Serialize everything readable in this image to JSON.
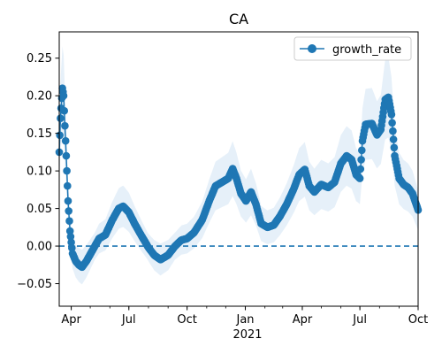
{
  "chart_data": {
    "type": "line",
    "title": "CA",
    "xlabel": "2021",
    "ylabel": "",
    "x_range": [
      "2020-03-13",
      "2021-10-01"
    ],
    "ylim": [
      -0.08,
      0.285
    ],
    "grid": false,
    "legend_position": "top-right",
    "colors": {
      "series": "#1f77b4",
      "band": "#e6f0f9",
      "reference_line": "#1f77b4"
    },
    "x_ticks": [
      {
        "date": "2020-04-01",
        "label": "Apr"
      },
      {
        "date": "2020-07-01",
        "label": "Jul"
      },
      {
        "date": "2020-10-01",
        "label": "Oct"
      },
      {
        "date": "2021-01-01",
        "label": "Jan"
      },
      {
        "date": "2021-04-01",
        "label": "Apr"
      },
      {
        "date": "2021-07-01",
        "label": "Jul"
      },
      {
        "date": "2021-10-01",
        "label": "Oct"
      }
    ],
    "y_ticks": [
      {
        "value": -0.05,
        "label": "−0.05"
      },
      {
        "value": 0.0,
        "label": "0.00"
      },
      {
        "value": 0.05,
        "label": "0.05"
      },
      {
        "value": 0.1,
        "label": "0.10"
      },
      {
        "value": 0.15,
        "label": "0.15"
      },
      {
        "value": 0.2,
        "label": "0.20"
      },
      {
        "value": 0.25,
        "label": "0.25"
      }
    ],
    "reference_line": {
      "y": 0.0,
      "style": "dashed"
    },
    "series": [
      {
        "name": "growth_rate",
        "keypoints": [
          [
            "2020-03-13",
            0.125
          ],
          [
            "2020-03-15",
            0.17
          ],
          [
            "2020-03-18",
            0.21
          ],
          [
            "2020-03-20",
            0.2
          ],
          [
            "2020-03-22",
            0.16
          ],
          [
            "2020-03-24",
            0.12
          ],
          [
            "2020-03-27",
            0.06
          ],
          [
            "2020-03-30",
            0.02
          ],
          [
            "2020-04-03",
            -0.01
          ],
          [
            "2020-04-08",
            -0.02
          ],
          [
            "2020-04-13",
            -0.025
          ],
          [
            "2020-04-18",
            -0.028
          ],
          [
            "2020-04-25",
            -0.02
          ],
          [
            "2020-05-05",
            -0.005
          ],
          [
            "2020-05-15",
            0.01
          ],
          [
            "2020-05-25",
            0.015
          ],
          [
            "2020-06-05",
            0.035
          ],
          [
            "2020-06-15",
            0.05
          ],
          [
            "2020-06-22",
            0.053
          ],
          [
            "2020-07-01",
            0.045
          ],
          [
            "2020-07-10",
            0.03
          ],
          [
            "2020-07-20",
            0.015
          ],
          [
            "2020-08-01",
            -0.002
          ],
          [
            "2020-08-10",
            -0.012
          ],
          [
            "2020-08-20",
            -0.018
          ],
          [
            "2020-09-01",
            -0.012
          ],
          [
            "2020-09-12",
            0.0
          ],
          [
            "2020-09-22",
            0.008
          ],
          [
            "2020-10-01",
            0.01
          ],
          [
            "2020-10-12",
            0.018
          ],
          [
            "2020-10-25",
            0.035
          ],
          [
            "2020-11-05",
            0.06
          ],
          [
            "2020-11-15",
            0.08
          ],
          [
            "2020-11-25",
            0.085
          ],
          [
            "2020-12-05",
            0.09
          ],
          [
            "2020-12-12",
            0.103
          ],
          [
            "2020-12-18",
            0.09
          ],
          [
            "2020-12-25",
            0.07
          ],
          [
            "2021-01-02",
            0.06
          ],
          [
            "2021-01-10",
            0.072
          ],
          [
            "2021-01-18",
            0.055
          ],
          [
            "2021-01-26",
            0.03
          ],
          [
            "2021-02-05",
            0.025
          ],
          [
            "2021-02-15",
            0.028
          ],
          [
            "2021-02-25",
            0.04
          ],
          [
            "2021-03-07",
            0.055
          ],
          [
            "2021-03-18",
            0.075
          ],
          [
            "2021-03-27",
            0.095
          ],
          [
            "2021-04-05",
            0.102
          ],
          [
            "2021-04-12",
            0.08
          ],
          [
            "2021-04-20",
            0.072
          ],
          [
            "2021-05-01",
            0.082
          ],
          [
            "2021-05-12",
            0.078
          ],
          [
            "2021-05-22",
            0.085
          ],
          [
            "2021-06-01",
            0.11
          ],
          [
            "2021-06-10",
            0.12
          ],
          [
            "2021-06-18",
            0.115
          ],
          [
            "2021-06-25",
            0.095
          ],
          [
            "2021-07-01",
            0.09
          ],
          [
            "2021-07-05",
            0.14
          ],
          [
            "2021-07-10",
            0.162
          ],
          [
            "2021-07-20",
            0.163
          ],
          [
            "2021-07-28",
            0.148
          ],
          [
            "2021-08-03",
            0.155
          ],
          [
            "2021-08-10",
            0.195
          ],
          [
            "2021-08-15",
            0.198
          ],
          [
            "2021-08-20",
            0.175
          ],
          [
            "2021-08-25",
            0.12
          ],
          [
            "2021-09-01",
            0.09
          ],
          [
            "2021-09-08",
            0.082
          ],
          [
            "2021-09-15",
            0.078
          ],
          [
            "2021-09-22",
            0.07
          ],
          [
            "2021-10-01",
            0.048
          ]
        ]
      }
    ]
  }
}
